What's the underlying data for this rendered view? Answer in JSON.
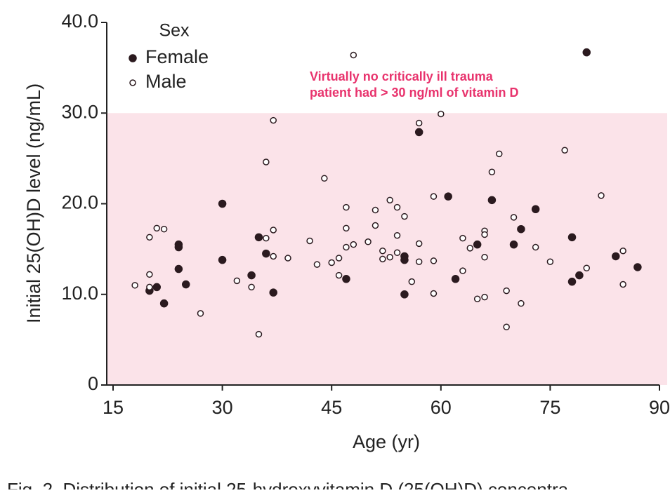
{
  "chart_data": {
    "type": "scatter",
    "ylabel": "Initial 25(OH)D level (ng/mL)",
    "xlabel": "Age (yr)",
    "legend_title": "Sex",
    "legend": "upper left",
    "annotation": [
      "Virtually no critically ill trauma",
      "patient had > 30 ng/ml of vitamin D"
    ],
    "annotation_color": "#e8336d",
    "shade_y": [
      0,
      30
    ],
    "shade_color": "#fbe3e9",
    "caption": "Fig. 2. Distribution of initial 25-hydroxyvitamin D (25(OH)D) concentra",
    "xlim": [
      15,
      90
    ],
    "xticks": [
      15,
      30,
      45,
      60,
      75,
      90
    ],
    "ylim": [
      0,
      40
    ],
    "yticks": [
      0,
      {
        "value": 10,
        "label": "10.0"
      },
      {
        "value": 20,
        "label": "20.0"
      },
      {
        "value": 30,
        "label": "30.0"
      },
      {
        "value": 40,
        "label": "40.0"
      }
    ],
    "series": [
      {
        "name": "Female",
        "color": "#2b1a1f",
        "filled": true,
        "x": [
          20,
          21,
          22,
          24,
          24,
          24,
          25,
          30,
          30,
          34,
          35,
          36,
          37,
          47,
          55,
          55,
          55,
          57,
          61,
          62,
          65,
          67,
          70,
          71,
          73,
          78,
          78,
          79,
          80,
          84,
          87
        ],
        "values": [
          10.4,
          10.8,
          9.0,
          15.5,
          15.2,
          12.8,
          11.1,
          20.0,
          13.8,
          12.1,
          16.3,
          14.5,
          10.2,
          11.7,
          14.2,
          13.8,
          10.0,
          27.9,
          20.8,
          11.7,
          15.5,
          20.4,
          15.5,
          17.2,
          19.4,
          16.3,
          11.4,
          12.1,
          36.7,
          14.2,
          13.0
        ]
      },
      {
        "name": "Male",
        "color": "#2b1a1f",
        "filled": false,
        "x": [
          18,
          20,
          20,
          20,
          21,
          22,
          27,
          32,
          34,
          35,
          36,
          36,
          37,
          37,
          37,
          39,
          42,
          43,
          44,
          45,
          46,
          46,
          47,
          47,
          47,
          48,
          48,
          50,
          51,
          51,
          52,
          52,
          53,
          53,
          54,
          54,
          54,
          55,
          56,
          57,
          57,
          57,
          59,
          59,
          59,
          60,
          63,
          63,
          64,
          65,
          67,
          68,
          66,
          66,
          66,
          66,
          69,
          69,
          70,
          71,
          73,
          75,
          77,
          80,
          82,
          85,
          85
        ],
        "values": [
          11.0,
          16.3,
          12.2,
          10.8,
          17.3,
          17.2,
          7.9,
          11.5,
          10.8,
          5.6,
          24.6,
          16.2,
          29.2,
          17.1,
          14.2,
          14.0,
          15.9,
          13.3,
          22.8,
          13.5,
          14.0,
          12.1,
          19.6,
          17.3,
          15.2,
          15.5,
          36.4,
          15.8,
          19.3,
          17.6,
          14.8,
          13.9,
          20.4,
          14.1,
          19.6,
          16.5,
          14.6,
          18.6,
          11.4,
          28.9,
          15.6,
          13.6,
          20.8,
          13.7,
          10.1,
          29.9,
          16.2,
          12.6,
          15.1,
          9.5,
          23.5,
          25.5,
          17.0,
          16.6,
          14.1,
          9.7,
          10.4,
          6.4,
          18.5,
          9.0,
          15.2,
          13.6,
          25.9,
          12.9,
          20.9,
          14.8,
          11.1
        ]
      }
    ]
  }
}
